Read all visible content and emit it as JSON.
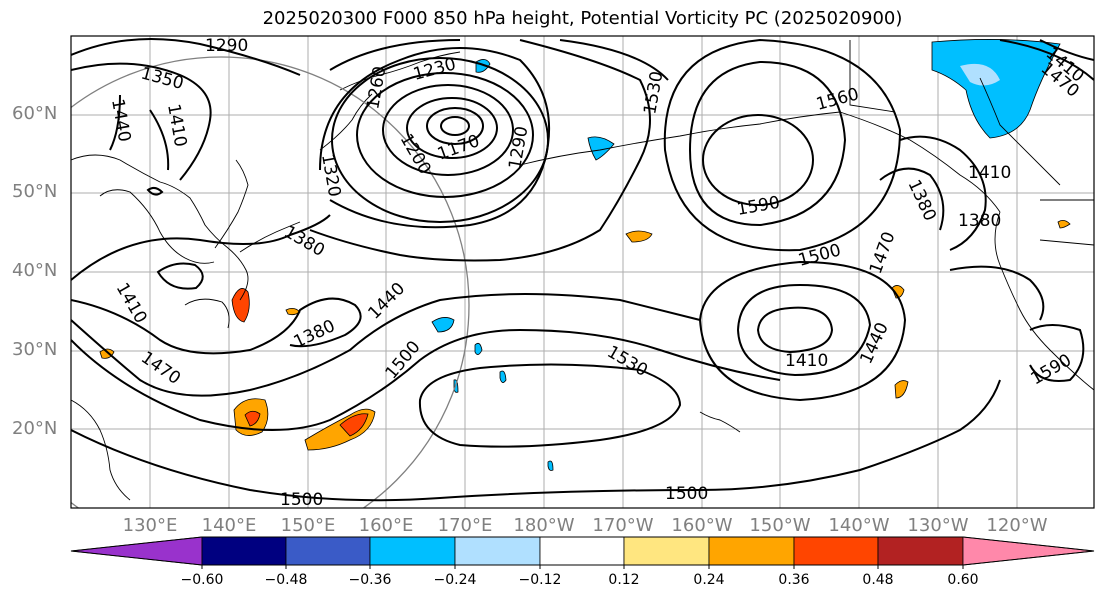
{
  "title": "2025020300 F000 850 hPa height, Potential Vorticity PC (2025020900)",
  "latitude_labels": [
    "60°N",
    "50°N",
    "40°N",
    "30°N",
    "20°N"
  ],
  "longitude_labels": [
    "130°E",
    "140°E",
    "150°E",
    "160°E",
    "170°E",
    "180°W",
    "170°W",
    "160°W",
    "150°W",
    "140°W",
    "130°W",
    "120°W"
  ],
  "contour_labels": [
    "1290",
    "1350",
    "1230",
    "1440",
    "1410",
    "1260",
    "1200",
    "1170",
    "1320",
    "1290",
    "1530",
    "1560",
    "1590",
    "1500",
    "1470",
    "1410",
    "1380",
    "1380",
    "1380",
    "1410",
    "1440",
    "1500",
    "1470",
    "1530",
    "1410",
    "1440",
    "1590",
    "1500",
    "1500",
    "1380",
    "1470",
    "1410"
  ],
  "colorbar": {
    "ticks": [
      "−0.60",
      "−0.48",
      "−0.36",
      "−0.24",
      "−0.12",
      "0.12",
      "0.24",
      "0.36",
      "0.48",
      "0.60"
    ],
    "colors": [
      "#9932cc",
      "#000080",
      "#3a5bc7",
      "#00bfff",
      "#b0e0ff",
      "#ffffff",
      "#ffe680",
      "#ffa500",
      "#ff4500",
      "#b22222",
      "#ff88aa"
    ]
  }
}
